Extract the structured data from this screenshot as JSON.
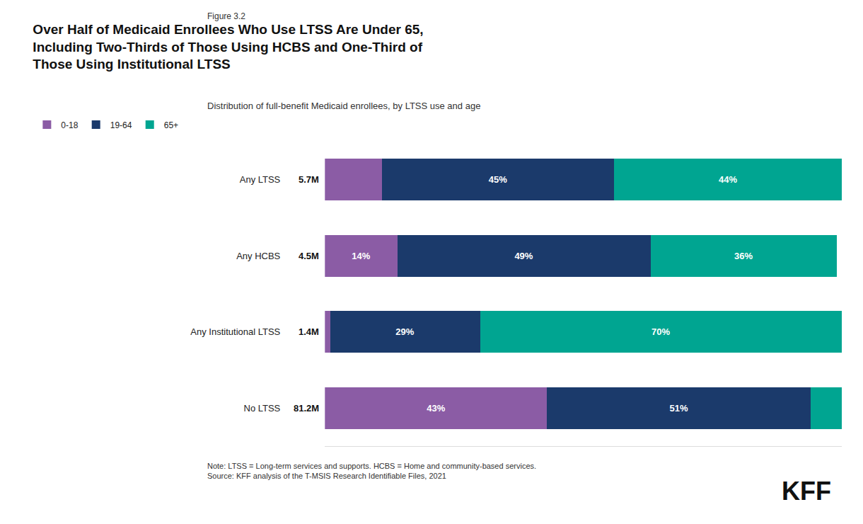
{
  "chart_data": {
    "type": "bar",
    "orientation": "horizontal",
    "stacked": true,
    "figure_label": "Figure 3.2",
    "title": "Over Half of Medicaid Enrollees Who Use LTSS Are Under 65,\nIncluding Two-Thirds of Those Using HCBS and One-Third of\nThose Using Institutional LTSS",
    "subtitle": "Distribution of full-benefit Medicaid enrollees, by LTSS use and age",
    "note": "Note: LTSS = Long-term services and supports. HCBS = Home and community-based services.\nSource: KFF analysis of the T-MSIS Research Identifiable Files, 2021",
    "logo": "KFF",
    "categories": [
      "Any LTSS",
      "Any HCBS",
      "Any Institutional LTSS",
      "No LTSS"
    ],
    "series": [
      {
        "name": "0-18",
        "color": "#8B5CA5",
        "values": [
          11,
          14,
          1,
          43
        ],
        "value_labels": [
          null,
          "14%",
          null,
          "43%"
        ]
      },
      {
        "name": "19-64",
        "color": "#1B3A6B",
        "values": [
          45,
          49,
          29,
          51
        ],
        "value_labels": [
          "45%",
          "49%",
          "29%",
          "51%"
        ]
      },
      {
        "name": "65+",
        "color": "#00A591",
        "values": [
          44,
          36,
          70,
          6
        ],
        "value_labels": [
          "44%",
          "36%",
          "70%",
          null
        ]
      }
    ],
    "annotations": [
      {
        "category": "Any LTSS",
        "text": "5.7M"
      },
      {
        "category": "Any HCBS",
        "text": "4.5M"
      },
      {
        "category": "Any Institutional LTSS",
        "text": "1.4M"
      },
      {
        "category": "No LTSS",
        "text": "81.2M"
      }
    ],
    "xlim": [
      0,
      100
    ],
    "data_labels": true,
    "tick_labels": "y",
    "grid": false,
    "legend": "top left"
  }
}
